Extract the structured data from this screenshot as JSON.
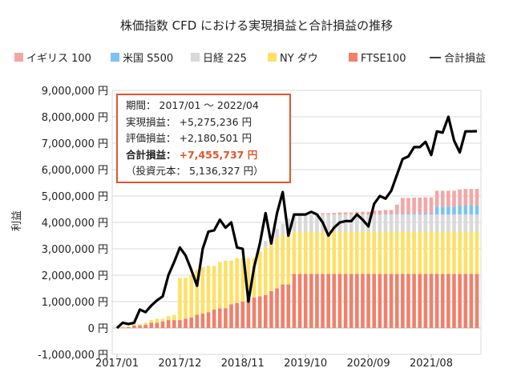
{
  "chart_data": {
    "type": "bar",
    "title": "株価指数 CFD における実現損益と合計損益の推移",
    "ylabel": "利益",
    "xlabel": "",
    "ylim": [
      -1000000,
      9000000
    ],
    "yticks": [
      "-1,000,000 円",
      "0 円",
      "1,000,000 円",
      "2,000,000 円",
      "3,000,000 円",
      "4,000,000 円",
      "5,000,000 円",
      "6,000,000 円",
      "7,000,000 円",
      "8,000,000 円",
      "9,000,000 円"
    ],
    "ytick_values": [
      -1000000,
      0,
      1000000,
      2000000,
      3000000,
      4000000,
      5000000,
      6000000,
      7000000,
      8000000,
      9000000
    ],
    "xtick_labels": [
      "2017/01",
      "2017/12",
      "2018/11",
      "2019/10",
      "2020/09",
      "2021/08"
    ],
    "xtick_index": [
      0,
      11,
      22,
      33,
      44,
      55
    ],
    "grid": true,
    "legend_placement": "top",
    "stacked": true,
    "series": [
      {
        "name": "FTSE100",
        "kind": "bar",
        "color": "#F0806A",
        "values": [
          20000,
          20000,
          30000,
          100000,
          100000,
          120000,
          200000,
          200000,
          250000,
          300000,
          300000,
          300000,
          350000,
          400000,
          500000,
          550000,
          600000,
          700000,
          750000,
          750000,
          900000,
          950000,
          1000000,
          1100000,
          1150000,
          1200000,
          1250000,
          1400000,
          1500000,
          1650000,
          1650000,
          2050000,
          2050000,
          2050000,
          2050000,
          2050000,
          2050000,
          2050000,
          2050000,
          2050000,
          2050000,
          2050000,
          2050000,
          2050000,
          2050000,
          2050000,
          2050000,
          2050000,
          2050000,
          2050000,
          2050000,
          2050000,
          2050000,
          2050000,
          2050000,
          2050000,
          2050000,
          2050000,
          2050000,
          2050000,
          2050000,
          2050000,
          2050000,
          2050000
        ]
      },
      {
        "name": "NY ダウ",
        "kind": "bar",
        "color": "#FFE066",
        "values": [
          10000,
          30000,
          20000,
          50000,
          50000,
          80000,
          100000,
          150000,
          100000,
          150000,
          200000,
          1600000,
          1550000,
          1600000,
          1700000,
          1750000,
          1750000,
          1650000,
          1750000,
          1800000,
          1650000,
          1700000,
          1650000,
          1550000,
          1500000,
          1700000,
          1800000,
          1800000,
          1900000,
          1900000,
          1900000,
          1600000,
          1600000,
          1600000,
          1600000,
          1600000,
          1600000,
          1600000,
          1600000,
          1600000,
          1600000,
          1600000,
          1600000,
          1600000,
          1600000,
          1600000,
          1600000,
          1600000,
          1600000,
          1600000,
          1600000,
          1600000,
          1600000,
          1600000,
          1600000,
          1600000,
          1600000,
          1600000,
          1600000,
          1600000,
          1600000,
          1600000,
          1600000,
          1600000
        ]
      },
      {
        "name": "日経 225",
        "kind": "bar",
        "color": "#D9D9D9",
        "values": [
          0,
          0,
          0,
          0,
          0,
          0,
          0,
          0,
          0,
          0,
          0,
          0,
          0,
          0,
          0,
          0,
          0,
          0,
          0,
          0,
          0,
          0,
          0,
          0,
          0,
          0,
          250000,
          350000,
          350000,
          400000,
          600000,
          650000,
          650000,
          650000,
          650000,
          650000,
          650000,
          650000,
          650000,
          650000,
          650000,
          650000,
          650000,
          650000,
          650000,
          650000,
          650000,
          650000,
          650000,
          650000,
          650000,
          650000,
          650000,
          650000,
          650000,
          650000,
          650000,
          650000,
          650000,
          650000,
          650000,
          650000,
          650000,
          650000
        ]
      },
      {
        "name": "米国 S500",
        "kind": "bar",
        "color": "#7CC3F0",
        "values": [
          0,
          0,
          0,
          0,
          0,
          0,
          0,
          0,
          0,
          0,
          0,
          0,
          0,
          0,
          0,
          0,
          0,
          0,
          0,
          0,
          0,
          0,
          0,
          0,
          0,
          0,
          0,
          0,
          0,
          0,
          0,
          0,
          0,
          0,
          0,
          0,
          0,
          0,
          0,
          0,
          0,
          0,
          0,
          0,
          0,
          0,
          0,
          20000,
          20000,
          20000,
          30000,
          30000,
          40000,
          40000,
          50000,
          50000,
          300000,
          300000,
          300000,
          300000,
          350000,
          350000,
          350000,
          350000
        ]
      },
      {
        "name": "イギリス 100",
        "kind": "bar",
        "color": "#F4A6A6",
        "values": [
          0,
          0,
          0,
          0,
          0,
          0,
          0,
          0,
          0,
          0,
          0,
          0,
          0,
          0,
          0,
          0,
          0,
          0,
          0,
          0,
          0,
          0,
          0,
          0,
          0,
          0,
          0,
          0,
          0,
          0,
          0,
          0,
          0,
          0,
          0,
          50000,
          50000,
          50000,
          60000,
          80000,
          80000,
          80000,
          100000,
          100000,
          100000,
          150000,
          150000,
          150000,
          150000,
          350000,
          600000,
          600000,
          600000,
          600000,
          600000,
          600000,
          600000,
          600000,
          600000,
          600000,
          600000,
          620000,
          620000,
          620000
        ]
      },
      {
        "name": "合計損益",
        "kind": "line",
        "color": "#000000",
        "values": [
          0,
          200000,
          150000,
          200000,
          700000,
          600000,
          850000,
          1050000,
          1200000,
          2000000,
          2500000,
          3050000,
          2750000,
          2200000,
          1600000,
          3000000,
          3650000,
          3700000,
          4100000,
          3800000,
          4000000,
          3050000,
          3000000,
          1000000,
          2300000,
          3200000,
          4350000,
          3200000,
          4350000,
          5150000,
          3500000,
          4300000,
          4300000,
          4300000,
          4400000,
          4300000,
          4000000,
          3500000,
          3800000,
          4000000,
          4050000,
          4050000,
          4300000,
          4100000,
          3850000,
          4700000,
          5000000,
          4900000,
          5200000,
          5800000,
          6400000,
          6500000,
          6850000,
          6850000,
          7050000,
          6550000,
          7450000,
          7400000,
          8000000,
          7100000,
          6650000,
          7450000,
          7450000,
          7455737
        ]
      }
    ],
    "legend_order": [
      "イギリス 100",
      "米国 S500",
      "日経 225",
      "NY ダウ",
      "FTSE100",
      "合計損益"
    ],
    "annotation": {
      "period_label": "期間：",
      "period": "2017/01 ～ 2022/04",
      "realized_label": "実現損益：",
      "realized": "+5,275,236 円",
      "unrealized_label": "評価損益：",
      "unrealized": "+2,180,501 円",
      "total_label": "合計損益：",
      "total": "+7,455,737 円",
      "principal_open": "（投資元本：",
      "principal": "5,136,327 円）",
      "border_color": "#E2542A"
    }
  }
}
